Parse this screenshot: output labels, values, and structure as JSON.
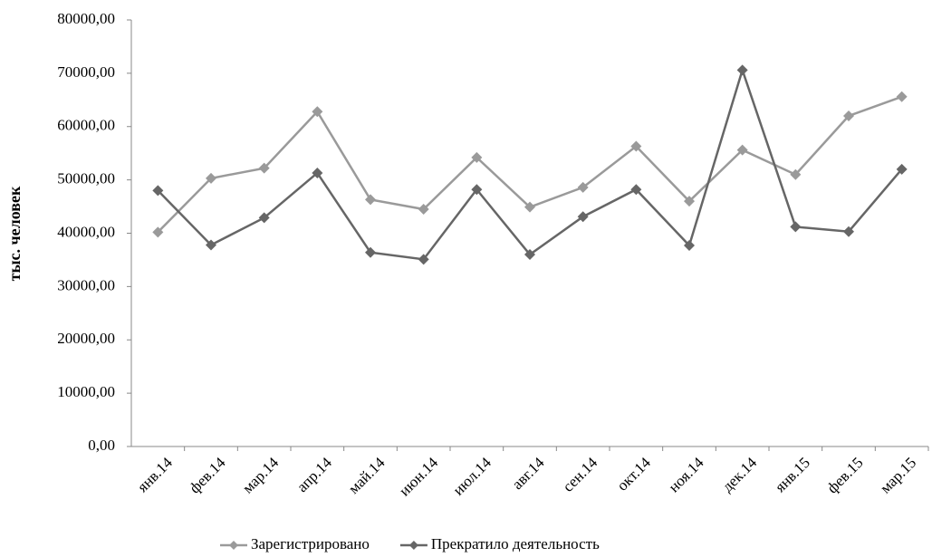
{
  "chart_data": {
    "type": "line",
    "y_label": "тыс. человек",
    "categories": [
      "янв.14",
      "фев.14",
      "мар.14",
      "апр.14",
      "май.14",
      "июн.14",
      "июл.14",
      "авг.14",
      "сен.14",
      "окт.14",
      "ноя.14",
      "дек.14",
      "янв.15",
      "фев.15",
      "мар.15"
    ],
    "series": [
      {
        "name": "Зарегистрировано",
        "color": "#9a9a9a",
        "values": [
          40200,
          50300,
          52200,
          62800,
          46300,
          44500,
          54200,
          44900,
          48600,
          56300,
          46000,
          55600,
          51000,
          62000,
          65600
        ]
      },
      {
        "name": "Прекратило деятельность",
        "color": "#666666",
        "values": [
          48000,
          37800,
          42900,
          51300,
          36400,
          35100,
          48200,
          36000,
          43100,
          48200,
          37700,
          70600,
          41200,
          40300,
          52000
        ]
      }
    ],
    "ylim": [
      0,
      80000
    ],
    "yticks": [
      {
        "value": 0,
        "label": "0,00"
      },
      {
        "value": 10000,
        "label": "10000,00"
      },
      {
        "value": 20000,
        "label": "20000,00"
      },
      {
        "value": 30000,
        "label": "30000,00"
      },
      {
        "value": 40000,
        "label": "40000,00"
      },
      {
        "value": 50000,
        "label": "50000,00"
      },
      {
        "value": 60000,
        "label": "60000,00"
      },
      {
        "value": 70000,
        "label": "70000,00"
      },
      {
        "value": 80000,
        "label": "80000,00"
      }
    ],
    "grid": false,
    "legend": "bottom"
  }
}
